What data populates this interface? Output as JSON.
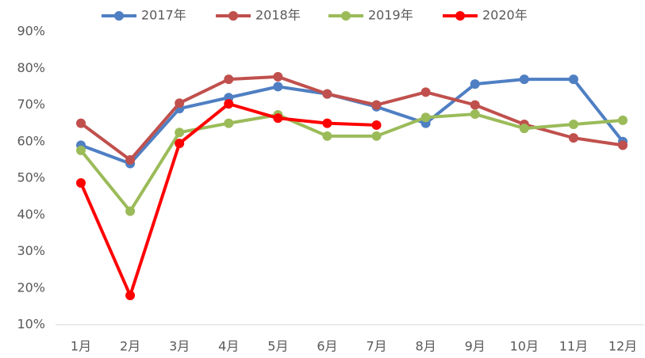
{
  "chart_data": {
    "type": "line",
    "categories": [
      "1月",
      "2月",
      "3月",
      "4月",
      "5月",
      "6月",
      "7月",
      "8月",
      "9月",
      "10月",
      "11月",
      "12月"
    ],
    "series": [
      {
        "name": "2017年",
        "color": "#4f7fc3",
        "values": [
          59,
          54,
          69,
          72,
          75,
          73,
          69.5,
          65,
          75.7,
          77,
          77,
          60
        ]
      },
      {
        "name": "2018年",
        "color": "#c0504d",
        "values": [
          65,
          55,
          70.5,
          77,
          77.7,
          73,
          70,
          73.5,
          70,
          64.7,
          61,
          59
        ]
      },
      {
        "name": "2019年",
        "color": "#9bbb59",
        "values": [
          57.6,
          41,
          62.5,
          65,
          67.3,
          61.5,
          61.5,
          66.6,
          67.5,
          63.6,
          64.7,
          65.8
        ]
      },
      {
        "name": "2020年",
        "color": "#ff0000",
        "values": [
          48.7,
          18,
          59.5,
          70.3,
          66.4,
          65,
          64.5,
          null,
          null,
          null,
          null,
          null
        ]
      }
    ],
    "ylim": [
      10,
      90
    ],
    "yticks": [
      {
        "value": 10,
        "label": "10%"
      },
      {
        "value": 20,
        "label": "20%"
      },
      {
        "value": 30,
        "label": "30%"
      },
      {
        "value": 40,
        "label": "40%"
      },
      {
        "value": 50,
        "label": "50%"
      },
      {
        "value": 60,
        "label": "60%"
      },
      {
        "value": 70,
        "label": "70%"
      },
      {
        "value": 80,
        "label": "80%"
      },
      {
        "value": 90,
        "label": "90%"
      }
    ],
    "grid": false,
    "legend": "top"
  }
}
